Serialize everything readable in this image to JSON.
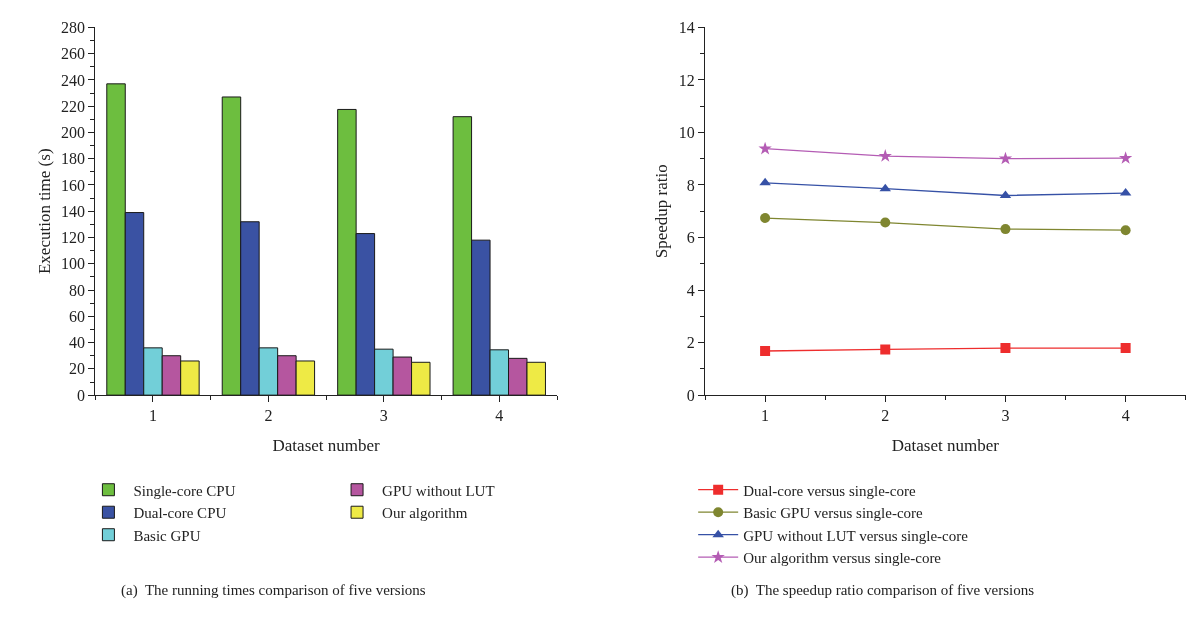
{
  "chart_data": [
    {
      "type": "bar",
      "xlabel": "Dataset number",
      "ylabel": "Execution time (s)",
      "categories": [
        "1",
        "2",
        "3",
        "4"
      ],
      "ylim": [
        0,
        280
      ],
      "yticks": [
        0,
        20,
        40,
        60,
        80,
        100,
        120,
        140,
        160,
        180,
        200,
        220,
        240,
        260,
        280
      ],
      "legend": "bottom",
      "series": [
        {
          "name": "Single-core CPU",
          "color": "#6dbe3f",
          "values": [
            237,
            227,
            217.5,
            212
          ]
        },
        {
          "name": "Dual-core CPU",
          "color": "#3a52a3",
          "values": [
            139,
            132,
            123,
            118
          ]
        },
        {
          "name": "Basic GPU",
          "color": "#72cfd8",
          "values": [
            36,
            36,
            35,
            34.5
          ]
        },
        {
          "name": "GPU without LUT",
          "color": "#b5569f",
          "values": [
            30,
            30,
            29,
            28
          ]
        },
        {
          "name": "Our algorithm",
          "color": "#eeea45",
          "values": [
            26,
            26,
            25,
            25
          ]
        }
      ],
      "annotations": [
        "(a)  The running times comparison of five versions"
      ]
    },
    {
      "type": "line",
      "xlabel": "Dataset number",
      "ylabel": "Speedup ratio",
      "x": [
        1,
        2,
        3,
        4
      ],
      "xlim": [
        0.5,
        4.5
      ],
      "xticks": [
        1,
        2,
        3,
        4
      ],
      "ylim": [
        0,
        14
      ],
      "yticks": [
        0,
        2,
        4,
        6,
        8,
        10,
        12,
        14
      ],
      "legend": "bottom",
      "line_style": "solid",
      "series": [
        {
          "name": "Dual-core versus single-core",
          "color": "#ee2d2d",
          "marker": "square",
          "values": [
            1.68,
            1.74,
            1.79,
            1.79
          ]
        },
        {
          "name": "Basic GPU versus single-core",
          "color": "#7f8630",
          "marker": "circle",
          "values": [
            6.74,
            6.57,
            6.32,
            6.28
          ]
        },
        {
          "name": "GPU without LUT versus single-core",
          "color": "#3651a6",
          "marker": "triangle",
          "values": [
            8.08,
            7.86,
            7.6,
            7.69
          ]
        },
        {
          "name": "Our algorithm versus single-core",
          "color": "#b45cb4",
          "marker": "star",
          "values": [
            9.38,
            9.1,
            9.0,
            9.02
          ]
        }
      ],
      "annotations": [
        "(b)  The speedup ratio comparison of five versions"
      ]
    }
  ]
}
